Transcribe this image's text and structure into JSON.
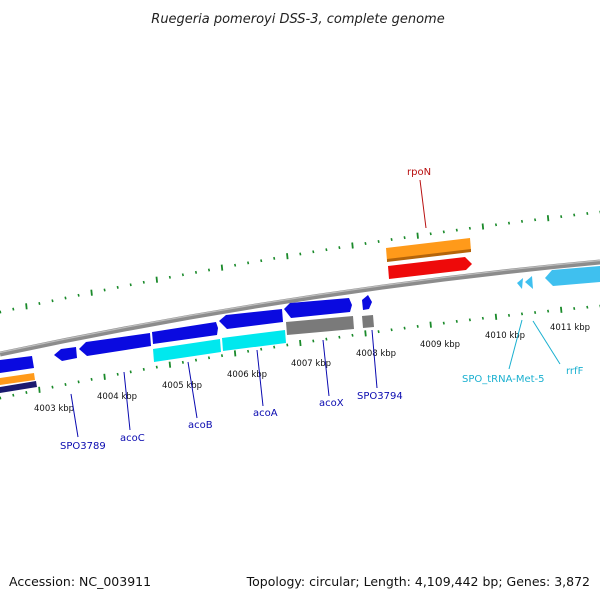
{
  "title": "Ruegeria pomeroyi DSS-3, complete genome",
  "footer": {
    "accession": "Accession: NC_003911",
    "summary": "Topology: circular; Length: 4,109,442 bp; Genes: 3,872"
  },
  "colors": {
    "backbone": "#8c8c8c",
    "tick": "#1a8a2a",
    "gene_forward": "#0a0ae0",
    "gene_cds": "#00e8ee",
    "gene_rpon": "#ff9a1a",
    "gene_red": "#ee0a0a",
    "gene_gray": "#7a7a7a",
    "rna": "#3fc0ef",
    "label_blue": "#0a0ab0",
    "label_red": "#b81010",
    "label_cyan": "#1ab0d0"
  },
  "ticks": [
    {
      "label": "4003 kbp"
    },
    {
      "label": "4004 kbp"
    },
    {
      "label": "4005 kbp"
    },
    {
      "label": "4006 kbp"
    },
    {
      "label": "4007 kbp"
    },
    {
      "label": "4008 kbp"
    },
    {
      "label": "4009 kbp"
    },
    {
      "label": "4010 kbp"
    },
    {
      "label": "4011 kbp"
    }
  ],
  "genes": [
    {
      "label": "SPO3789"
    },
    {
      "label": "acoC"
    },
    {
      "label": "acoB"
    },
    {
      "label": "acoA"
    },
    {
      "label": "acoX"
    },
    {
      "label": "SPO3794"
    },
    {
      "label": "rpoN"
    },
    {
      "label": "SPO_tRNA-Met-5"
    },
    {
      "label": "rrfF"
    }
  ]
}
